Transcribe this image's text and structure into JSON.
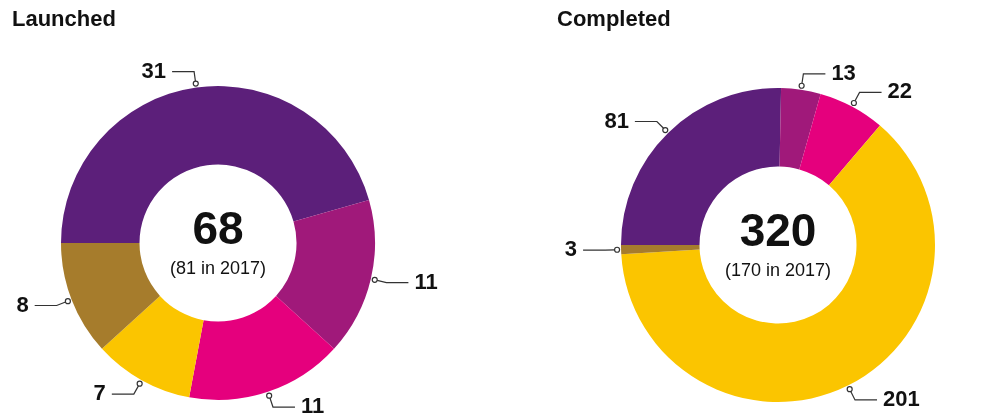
{
  "chart_data": [
    {
      "type": "donut",
      "title": "Launched",
      "categories": [
        null,
        null,
        null,
        null,
        null
      ],
      "values": [
        31,
        11,
        11,
        7,
        8
      ],
      "colors": [
        "#5c1f7a",
        "#a0197a",
        "#e5007d",
        "#fbc500",
        "#a67c2c"
      ],
      "data_labels": true,
      "annotations": [
        "68",
        "(81 in 2017)"
      ]
    },
    {
      "type": "donut",
      "title": "Completed",
      "categories": [
        null,
        null,
        null,
        null,
        null
      ],
      "values": [
        81,
        13,
        22,
        201,
        3
      ],
      "colors": [
        "#5c1f7a",
        "#a0197a",
        "#e5007d",
        "#fbc500",
        "#a67c2c"
      ],
      "data_labels": true,
      "annotations": [
        "320",
        "(170 in 2017)"
      ]
    }
  ]
}
